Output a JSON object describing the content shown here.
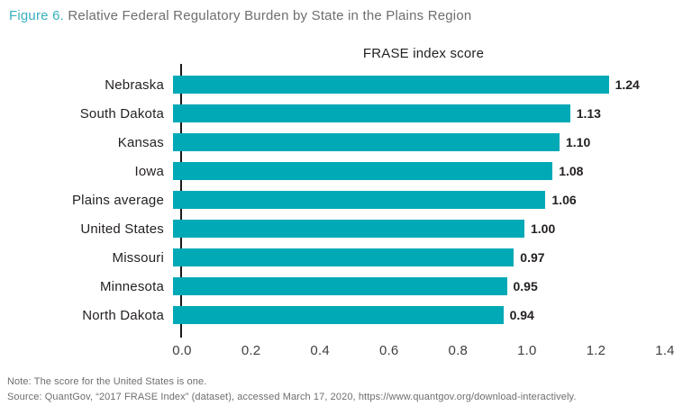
{
  "header": {
    "figure_label": "Figure 6.",
    "title": "Relative Federal Regulatory Burden by State in the Plains Region"
  },
  "chart_data": {
    "type": "bar",
    "orientation": "horizontal",
    "title": "FRASE index score",
    "categories": [
      "Nebraska",
      "South Dakota",
      "Kansas",
      "Iowa",
      "Plains average",
      "United States",
      "Missouri",
      "Minnesota",
      "North Dakota"
    ],
    "values": [
      1.24,
      1.13,
      1.1,
      1.08,
      1.06,
      1.0,
      0.97,
      0.95,
      0.94
    ],
    "value_labels": [
      "1.24",
      "1.13",
      "1.10",
      "1.08",
      "1.06",
      "1.00",
      "0.97",
      "0.95",
      "0.94"
    ],
    "xlabel": "",
    "ylabel": "",
    "xlim": [
      0,
      1.4
    ],
    "x_ticks": [
      "0.0",
      "0.2",
      "0.4",
      "0.6",
      "0.8",
      "1.0",
      "1.2",
      "1.4"
    ],
    "bar_color": "#00a9b6",
    "axis_line_color": "#1a1a1a",
    "grid": false,
    "legend": "none"
  },
  "footer": {
    "note": "Note: The score for the United States is one.",
    "source": "Source: QuantGov, “2017 FRASE Index” (dataset), accessed March 17, 2020, https://www.quantgov.org/download-interactively."
  }
}
